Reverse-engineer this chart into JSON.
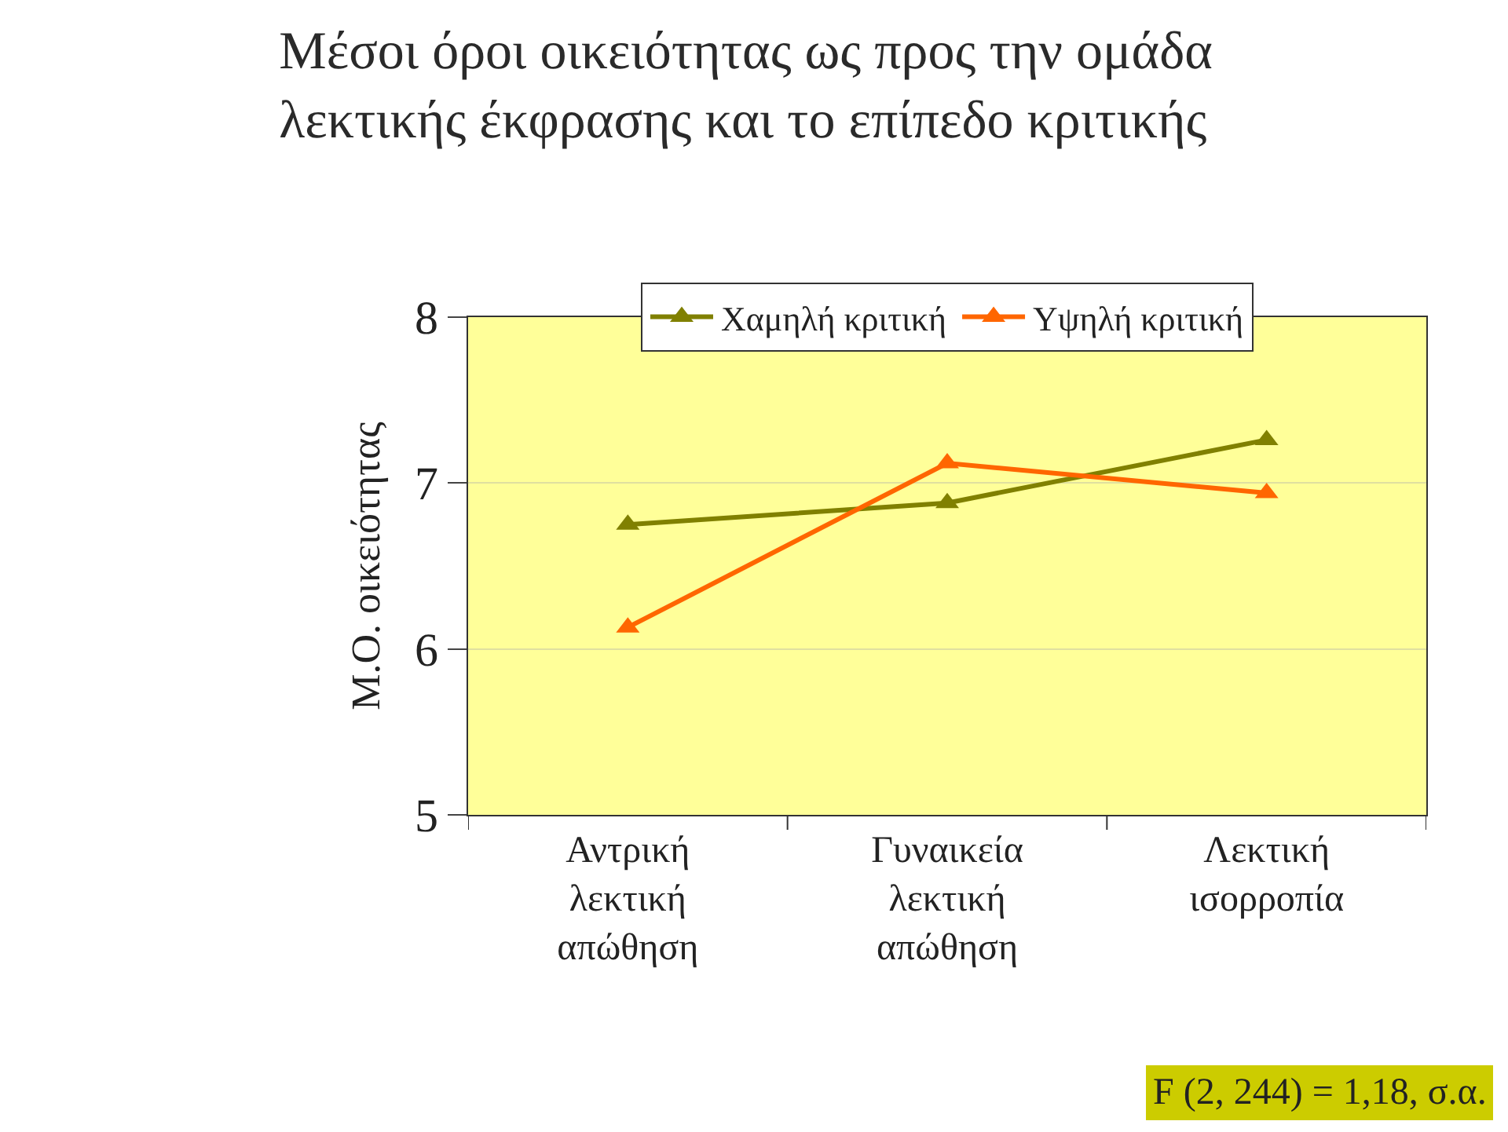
{
  "chart_data": {
    "type": "line",
    "title": "Μέσοι όροι οικειότητας ως προς την ομάδα\nλεκτικής έκφρασης και το επίπεδο κριτικής",
    "ylabel": "Μ.Ο. οικειότητας",
    "categories": [
      "Αντρική\nλεκτική\nαπώθηση",
      "Γυναικεία\nλεκτική\nαπώθηση",
      "Λεκτική\nισορροπία"
    ],
    "series": [
      {
        "name": "Χαμηλή κριτική",
        "color": "#808000",
        "values": [
          6.75,
          6.88,
          7.26
        ]
      },
      {
        "name": "Υψηλή κριτική",
        "color": "#ff6600",
        "values": [
          6.13,
          7.12,
          6.94
        ]
      }
    ],
    "ylim": [
      5,
      8
    ],
    "yticks": [
      5,
      6,
      7,
      8
    ],
    "grid": "y",
    "legend": "top",
    "marker": "triangle",
    "line_style": "solid",
    "annotations": [
      "F (2, 244) = 1,18, σ.α."
    ]
  }
}
